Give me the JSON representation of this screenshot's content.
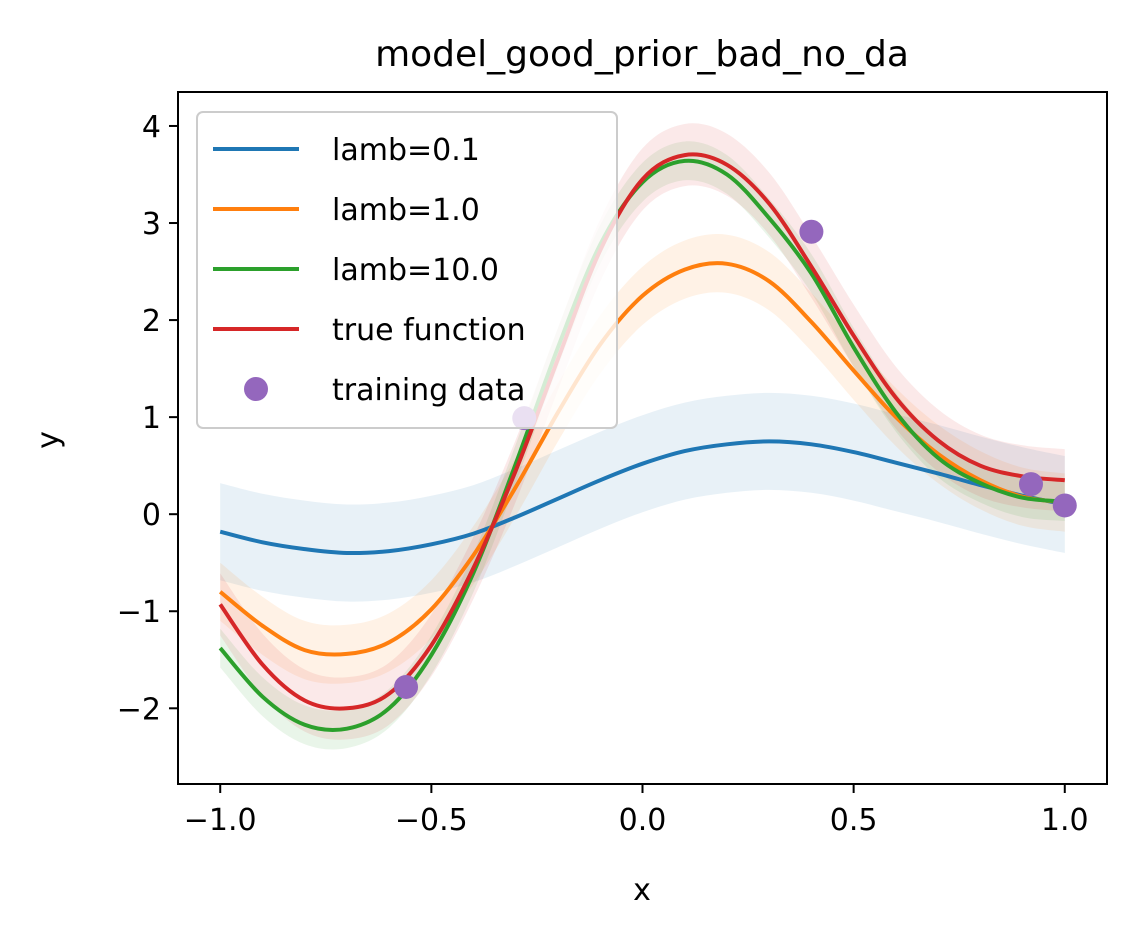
{
  "chart_data": {
    "type": "line",
    "title": "model_good_prior_bad_no_da",
    "xlabel": "x",
    "ylabel": "y",
    "xlim": [
      -1.1,
      1.1
    ],
    "ylim": [
      -2.78,
      4.35
    ],
    "x_ticks": [
      -1.0,
      -0.5,
      0.0,
      0.5,
      1.0
    ],
    "x_tick_labels": [
      "−1.0",
      "−0.5",
      "0.0",
      "0.5",
      "1.0"
    ],
    "y_ticks": [
      -2,
      -1,
      0,
      1,
      2,
      3,
      4
    ],
    "y_tick_labels": [
      "−2",
      "−1",
      "0",
      "1",
      "2",
      "3",
      "4"
    ],
    "legend_position": "top-left",
    "grid": false,
    "x": [
      -1.0,
      -0.9,
      -0.8,
      -0.7,
      -0.6,
      -0.5,
      -0.4,
      -0.3,
      -0.2,
      -0.1,
      0.0,
      0.1,
      0.2,
      0.3,
      0.4,
      0.5,
      0.6,
      0.7,
      0.8,
      0.9,
      1.0
    ],
    "series": [
      {
        "name": "lamb=0.1",
        "color": "#1f77b4",
        "values": [
          -0.18,
          -0.29,
          -0.36,
          -0.4,
          -0.38,
          -0.31,
          -0.2,
          -0.03,
          0.16,
          0.35,
          0.52,
          0.65,
          0.72,
          0.75,
          0.72,
          0.64,
          0.53,
          0.42,
          0.3,
          0.19,
          0.1
        ],
        "band": 0.5
      },
      {
        "name": "lamb=1.0",
        "color": "#ff7f0e",
        "values": [
          -0.8,
          -1.15,
          -1.4,
          -1.44,
          -1.32,
          -0.98,
          -0.42,
          0.28,
          1.05,
          1.75,
          2.25,
          2.52,
          2.58,
          2.4,
          1.98,
          1.48,
          1.0,
          0.62,
          0.35,
          0.18,
          0.12
        ],
        "band": 0.3
      },
      {
        "name": "lamb=10.0",
        "color": "#2ca02c",
        "values": [
          -1.38,
          -1.88,
          -2.17,
          -2.21,
          -2.0,
          -1.45,
          -0.6,
          0.52,
          1.72,
          2.78,
          3.42,
          3.64,
          3.5,
          3.05,
          2.48,
          1.72,
          1.05,
          0.58,
          0.32,
          0.17,
          0.13
        ],
        "band": 0.2
      },
      {
        "name": "true function",
        "color": "#d62728",
        "values": [
          -0.93,
          -1.55,
          -1.92,
          -2.0,
          -1.85,
          -1.35,
          -0.55,
          0.45,
          1.6,
          2.72,
          3.45,
          3.7,
          3.6,
          3.2,
          2.55,
          1.84,
          1.2,
          0.76,
          0.5,
          0.39,
          0.35
        ],
        "band": 0.32
      }
    ],
    "scatter": {
      "name": "training data",
      "color": "#9467bd",
      "x": [
        -0.56,
        -0.28,
        0.4,
        0.92,
        1.0
      ],
      "y": [
        -1.78,
        0.99,
        2.91,
        0.31,
        0.09
      ]
    }
  }
}
